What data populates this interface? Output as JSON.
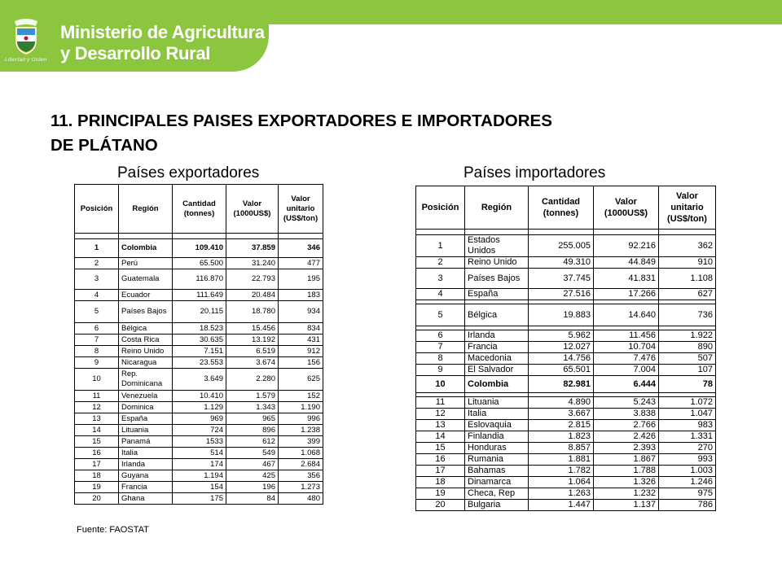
{
  "header": {
    "ministry_line1": "Ministerio de Agricultura",
    "ministry_line2": "y Desarrollo Rural",
    "motto": "Libertad y Orden",
    "brand_color": "#8cc63f"
  },
  "title_line1": "11. PRINCIPALES PAISES EXPORTADORES E IMPORTADORES",
  "title_line2": "DE PLÁTANO",
  "exporters": {
    "caption": "Países exportadores",
    "headers": [
      "Posición",
      "Región",
      "Cantidad (tonnes)",
      "Valor (1000US$)",
      "Valor unitario (US$/ton)"
    ],
    "rows": [
      [
        "1",
        "Colombia",
        "109.410",
        "37.859",
        "346"
      ],
      [
        "2",
        "Perú",
        "65.500",
        "31.240",
        "477"
      ],
      [
        "3",
        "Guatemala",
        "116.870",
        "22.793",
        "195"
      ],
      [
        "4",
        "Ecuador",
        "111.649",
        "20.484",
        "183"
      ],
      [
        "5",
        "Países Bajos",
        "20.115",
        "18.780",
        "934"
      ],
      [
        "6",
        "Bélgica",
        "18.523",
        "15.456",
        "834"
      ],
      [
        "7",
        "Costa Rica",
        "30.635",
        "13.192",
        "431"
      ],
      [
        "8",
        "Reino Unido",
        "7.151",
        "6.519",
        "912"
      ],
      [
        "9",
        "Nicaragua",
        "23.553",
        "3.674",
        "156"
      ],
      [
        "10",
        "Rep. Dominicana",
        "3.649",
        "2.280",
        "625"
      ],
      [
        "11",
        "Venezuela",
        "10.410",
        "1.579",
        "152"
      ],
      [
        "12",
        "Dominica",
        "1.129",
        "1.343",
        "1.190"
      ],
      [
        "13",
        "España",
        "969",
        "965",
        "996"
      ],
      [
        "14",
        "Lituania",
        "724",
        "896",
        "1.238"
      ],
      [
        "15",
        "Panamá",
        "1533",
        "612",
        "399"
      ],
      [
        "16",
        "Italia",
        "514",
        "549",
        "1.068"
      ],
      [
        "17",
        "Irlanda",
        "174",
        "467",
        "2.684"
      ],
      [
        "18",
        "Guyana",
        "1.194",
        "425",
        "356"
      ],
      [
        "19",
        "Francia",
        "154",
        "196",
        "1.273"
      ],
      [
        "20",
        "Ghana",
        "175",
        "84",
        "480"
      ]
    ]
  },
  "importers": {
    "caption": "Países importadores",
    "headers": [
      "Posición",
      "Región",
      "Cantidad (tonnes)",
      "Valor (1000US$)",
      "Valor unitario (US$/ton)"
    ],
    "rows": [
      [
        "1",
        "Estados Unidos",
        "255.005",
        "92.216",
        "362"
      ],
      [
        "2",
        "Reino Unido",
        "49.310",
        "44.849",
        "910"
      ],
      [
        "3",
        "Países Bajos",
        "37.745",
        "41.831",
        "1.108"
      ],
      [
        "4",
        "España",
        "27.516",
        "17.266",
        "627"
      ],
      [
        "5",
        "Bélgica",
        "19.883",
        "14.640",
        "736"
      ],
      [
        "6",
        "Irlanda",
        "5.962",
        "11.456",
        "1.922"
      ],
      [
        "7",
        "Francia",
        "12.027",
        "10.704",
        "890"
      ],
      [
        "8",
        "Macedonia",
        "14.756",
        "7.476",
        "507"
      ],
      [
        "9",
        "El Salvador",
        "65.501",
        "7.004",
        "107"
      ],
      [
        "10",
        "Colombia",
        "82.981",
        "6.444",
        "78"
      ],
      [
        "11",
        "Lituania",
        "4.890",
        "5.243",
        "1.072"
      ],
      [
        "12",
        "Italia",
        "3.667",
        "3.838",
        "1.047"
      ],
      [
        "13",
        "Eslovaquia",
        "2.815",
        "2.766",
        "983"
      ],
      [
        "14",
        "Finlandia",
        "1.823",
        "2.426",
        "1.331"
      ],
      [
        "15",
        "Honduras",
        "8.857",
        "2.393",
        "270"
      ],
      [
        "16",
        "Rumania",
        "1.881",
        "1.867",
        "993"
      ],
      [
        "17",
        "Bahamas",
        "1.782",
        "1.788",
        "1.003"
      ],
      [
        "18",
        "Dinamarca",
        "1.064",
        "1.326",
        "1.246"
      ],
      [
        "19",
        "Checa, Rep",
        "1.263",
        "1.232",
        "975"
      ],
      [
        "20",
        "Bulgaria",
        "1.447",
        "1.137",
        "786"
      ]
    ]
  },
  "source": "Fuente: FAOSTAT"
}
